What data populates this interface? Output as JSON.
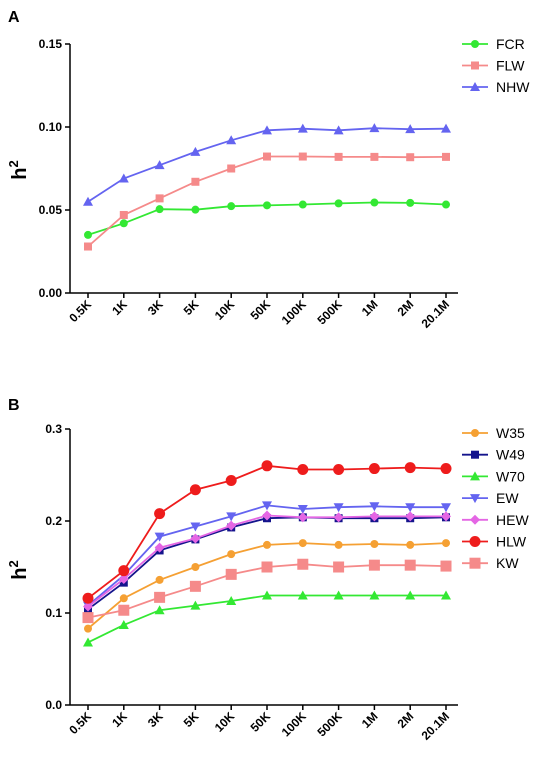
{
  "chart_data": [
    {
      "panel": "A",
      "type": "line",
      "title": "",
      "xlabel": "",
      "ylabel": "h",
      "ylabel_sup": "2",
      "ylim": [
        0,
        0.15
      ],
      "yticks": [
        "0.00",
        "0.05",
        "0.10",
        "0.15"
      ],
      "ytick_values": [
        0,
        0.05,
        0.1,
        0.15
      ],
      "categories": [
        "0.5K",
        "1K",
        "3K",
        "5K",
        "10K",
        "50K",
        "100K",
        "500K",
        "1M",
        "2M",
        "20.1M"
      ],
      "grid": false,
      "legend_position": "top-right",
      "series": [
        {
          "name": "FCR",
          "color": "#33e833",
          "marker": "circle",
          "values": [
            0.035,
            0.042,
            0.0505,
            0.0502,
            0.0523,
            0.0528,
            0.0533,
            0.054,
            0.0545,
            0.0543,
            0.0533
          ]
        },
        {
          "name": "FLW",
          "color": "#f58a8a",
          "marker": "square",
          "values": [
            0.028,
            0.047,
            0.057,
            0.067,
            0.075,
            0.0822,
            0.0822,
            0.082,
            0.082,
            0.0818,
            0.082
          ]
        },
        {
          "name": "NHW",
          "color": "#6464f0",
          "marker": "triangle-up",
          "values": [
            0.055,
            0.069,
            0.077,
            0.085,
            0.092,
            0.098,
            0.099,
            0.098,
            0.0993,
            0.0987,
            0.099
          ]
        }
      ]
    },
    {
      "panel": "B",
      "type": "line",
      "title": "",
      "xlabel": "",
      "ylabel": "h",
      "ylabel_sup": "2",
      "ylim": [
        0,
        0.3
      ],
      "yticks": [
        "0.0",
        "0.1",
        "0.2",
        "0.3"
      ],
      "ytick_values": [
        0,
        0.1,
        0.2,
        0.3
      ],
      "categories": [
        "0.5K",
        "1K",
        "3K",
        "5K",
        "10K",
        "50K",
        "100K",
        "500K",
        "1M",
        "2M",
        "20.1M"
      ],
      "grid": false,
      "legend_position": "right",
      "series": [
        {
          "name": "W35",
          "color": "#f5a033",
          "marker": "circle",
          "values": [
            0.083,
            0.116,
            0.136,
            0.15,
            0.164,
            0.174,
            0.176,
            0.174,
            0.175,
            0.174,
            0.176
          ]
        },
        {
          "name": "W49",
          "color": "#14148c",
          "marker": "square",
          "values": [
            0.104,
            0.133,
            0.168,
            0.18,
            0.193,
            0.203,
            0.204,
            0.203,
            0.203,
            0.203,
            0.204
          ]
        },
        {
          "name": "W70",
          "color": "#33e833",
          "marker": "triangle-up",
          "values": [
            0.068,
            0.087,
            0.103,
            0.108,
            0.113,
            0.119,
            0.119,
            0.119,
            0.119,
            0.119,
            0.119
          ]
        },
        {
          "name": "EW",
          "color": "#6464f0",
          "marker": "triangle-down",
          "values": [
            0.108,
            0.141,
            0.183,
            0.194,
            0.205,
            0.217,
            0.213,
            0.215,
            0.216,
            0.215,
            0.215
          ]
        },
        {
          "name": "HEW",
          "color": "#e466e4",
          "marker": "diamond",
          "values": [
            0.107,
            0.137,
            0.171,
            0.181,
            0.195,
            0.206,
            0.204,
            0.204,
            0.205,
            0.205,
            0.205
          ]
        },
        {
          "name": "HLW",
          "color": "#ee1c1c",
          "marker": "circle-large",
          "values": [
            0.116,
            0.146,
            0.208,
            0.234,
            0.244,
            0.26,
            0.256,
            0.256,
            0.257,
            0.258,
            0.257
          ]
        },
        {
          "name": "KW",
          "color": "#f58a8a",
          "marker": "square-large",
          "values": [
            0.095,
            0.103,
            0.117,
            0.129,
            0.142,
            0.15,
            0.153,
            0.15,
            0.152,
            0.152,
            0.151
          ]
        }
      ]
    }
  ]
}
